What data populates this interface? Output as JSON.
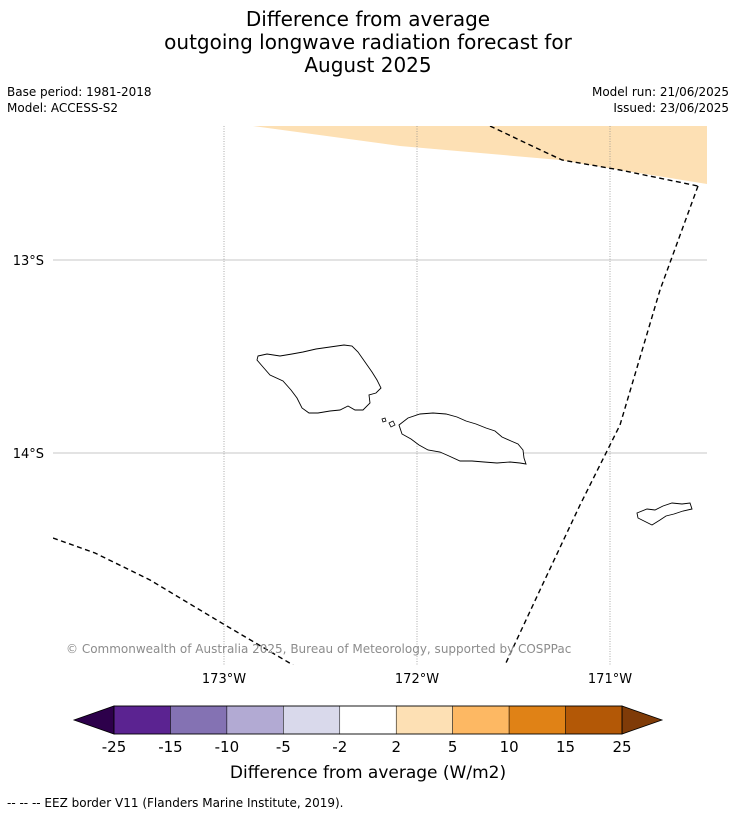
{
  "title": {
    "line1": "Difference from average",
    "line2": "outgoing longwave radiation forecast for",
    "line3": "August 2025"
  },
  "meta": {
    "base_period": "Base period: 1981-2018",
    "model": "Model: ACCESS-S2",
    "model_run": "Model run: 21/06/2025",
    "issued": "Issued: 23/06/2025"
  },
  "map": {
    "lat_labels": [
      "13°S",
      "14°S"
    ],
    "lon_labels": [
      "173°W",
      "172°W",
      "171°W"
    ],
    "copyright": "© Commonwealth of Australia 2025, Bureau of Meteorology, supported by COSPPac",
    "anomaly_fill_color": "#fde0b4",
    "eez_line": "dashed"
  },
  "colorbar": {
    "label": "Difference from average (W/m2)",
    "ticks": [
      "-25",
      "-15",
      "-10",
      "-5",
      "-2",
      "2",
      "5",
      "10",
      "15",
      "25"
    ],
    "colors": [
      "#5b2391",
      "#8472b3",
      "#b2aad3",
      "#d9d9eb",
      "#ffffff",
      "#fde0b4",
      "#fdb863",
      "#e08216",
      "#b35806"
    ],
    "under_color": "#2d004b",
    "over_color": "#7f3b08"
  },
  "footnote": "--  --  -- EEZ border V11 (Flanders Marine Institute, 2019)."
}
